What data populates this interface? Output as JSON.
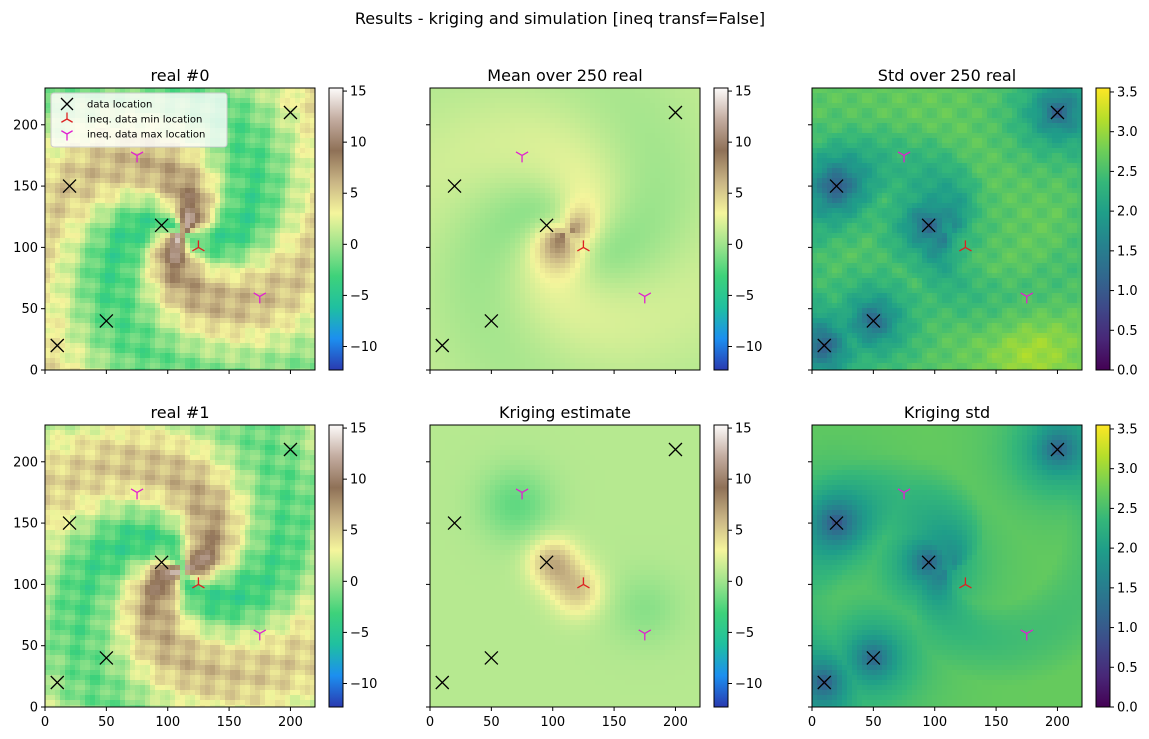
{
  "figure": {
    "suptitle": "Results - kriging and simulation [ineq transf=False]"
  },
  "legend": {
    "entries": [
      {
        "label": "data location",
        "marker": "x",
        "color": "#000000"
      },
      {
        "label": "ineq. data min location",
        "marker": "tri_down",
        "color": "#dd2222"
      },
      {
        "label": "ineq. data max location",
        "marker": "tri_up",
        "color": "#e020d0"
      }
    ],
    "placement": "upper-left of first panel"
  },
  "colormaps": {
    "field": {
      "name": "terrain-like",
      "stops": [
        "#2a3ab0",
        "#1c8ff0",
        "#1fc0a0",
        "#3ed27a",
        "#9ee48c",
        "#f5f59c",
        "#c9b585",
        "#8f7157",
        "#c3aca0",
        "#fdfbfa"
      ],
      "range": [
        -12.3,
        15.3
      ],
      "ticks": [
        -10,
        -5,
        0,
        5,
        10,
        15
      ]
    },
    "std": {
      "name": "viridis",
      "stops": [
        "#440154",
        "#482878",
        "#3e4989",
        "#31688e",
        "#26828e",
        "#1f9e89",
        "#35b779",
        "#6ece58",
        "#b5de2b",
        "#fde725"
      ],
      "range": [
        0,
        3.55
      ],
      "ticks": [
        0.0,
        0.5,
        1.0,
        1.5,
        2.0,
        2.5,
        3.0,
        3.5
      ],
      "tick_labels": [
        "0.0",
        "0.5",
        "1.0",
        "1.5",
        "2.0",
        "2.5",
        "3.0",
        "3.5"
      ]
    }
  },
  "axes": {
    "xlim": [
      0,
      220
    ],
    "ylim": [
      0,
      230
    ],
    "xticks": [
      0,
      50,
      100,
      150,
      200
    ],
    "yticks": [
      0,
      50,
      100,
      150,
      200
    ]
  },
  "points": {
    "data_locations": [
      [
        10,
        20
      ],
      [
        20,
        150
      ],
      [
        50,
        40
      ],
      [
        95,
        118
      ],
      [
        200,
        210
      ]
    ],
    "ineq_min_locations": [
      [
        125,
        100
      ]
    ],
    "ineq_max_locations": [
      [
        75,
        175
      ],
      [
        175,
        60
      ]
    ]
  },
  "chart_data": [
    {
      "type": "heatmap",
      "title": "real #0",
      "colormap": "field",
      "colorbar_ticks": [
        -10,
        -5,
        0,
        5,
        10,
        15
      ]
    },
    {
      "type": "heatmap",
      "title": "Mean over 250 real",
      "colormap": "field",
      "colorbar_ticks": [
        -10,
        -5,
        0,
        5,
        10,
        15
      ]
    },
    {
      "type": "heatmap",
      "title": "Std over 250 real",
      "colormap": "std",
      "colorbar_ticks": [
        0.0,
        0.5,
        1.0,
        1.5,
        2.0,
        2.5,
        3.0,
        3.5
      ]
    },
    {
      "type": "heatmap",
      "title": "real #1",
      "colormap": "field",
      "colorbar_ticks": [
        -10,
        -5,
        0,
        5,
        10,
        15
      ]
    },
    {
      "type": "heatmap",
      "title": "Kriging estimate",
      "colormap": "field",
      "colorbar_ticks": [
        -10,
        -5,
        0,
        5,
        10,
        15
      ]
    },
    {
      "type": "heatmap",
      "title": "Kriging std",
      "colormap": "std",
      "colorbar_ticks": [
        0.0,
        0.5,
        1.0,
        1.5,
        2.0,
        2.5,
        3.0,
        3.5
      ]
    }
  ]
}
